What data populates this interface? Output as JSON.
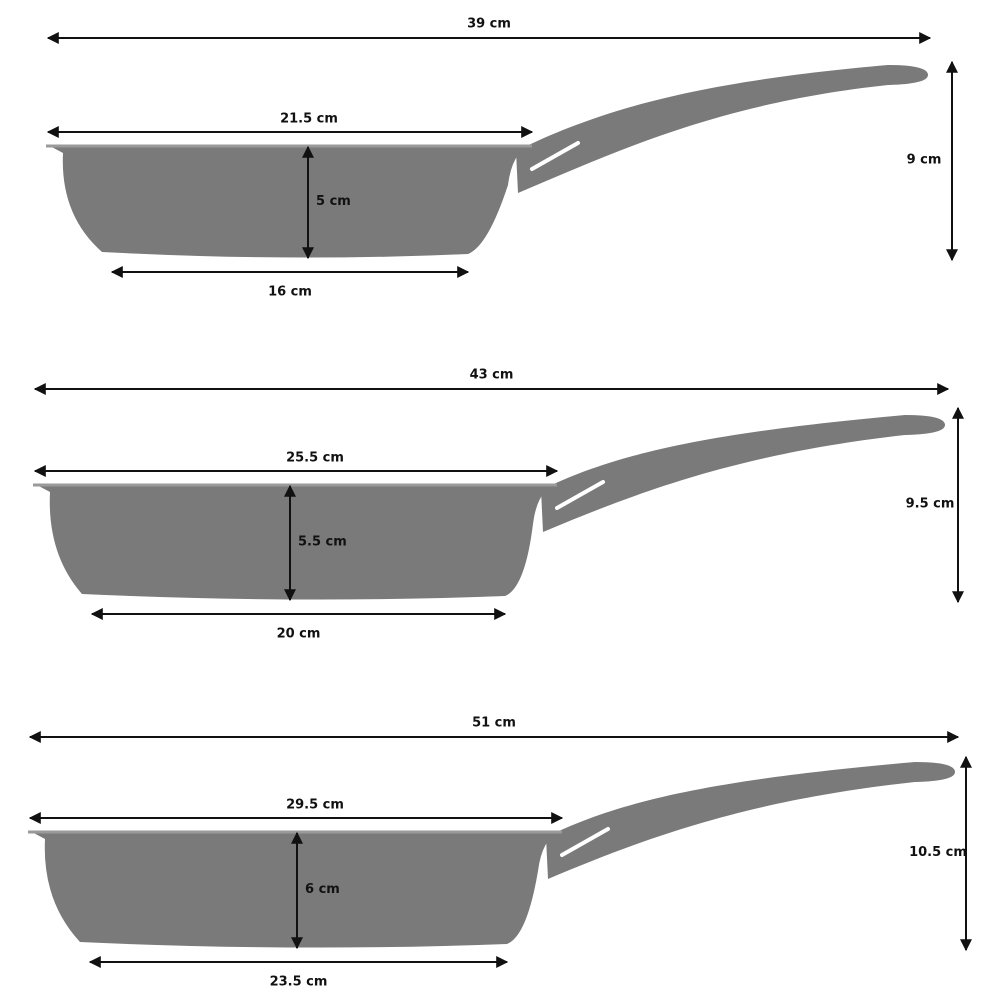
{
  "pans": [
    {
      "length": "39 cm",
      "top_diameter": "21.5 cm",
      "depth": "5 cm",
      "base_diameter": "16 cm",
      "height": "9 cm"
    },
    {
      "length": "43 cm",
      "top_diameter": "25.5 cm",
      "depth": "5.5 cm",
      "base_diameter": "20 cm",
      "height": "9.5 cm"
    },
    {
      "length": "51 cm",
      "top_diameter": "29.5 cm",
      "depth": "6 cm",
      "base_diameter": "23.5 cm",
      "height": "10.5 cm"
    }
  ]
}
